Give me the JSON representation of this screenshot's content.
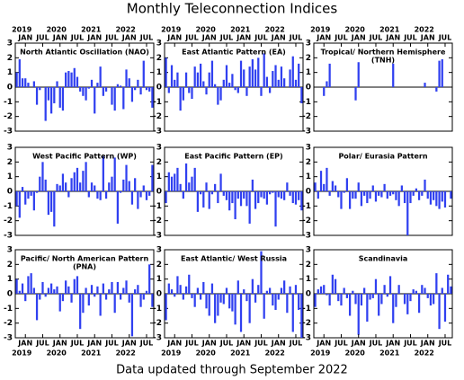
{
  "title": "Monthly Teleconnection Indices",
  "footer": "Data updated through September 2022",
  "chart_data": [
    {
      "type": "bar",
      "title": [
        "North Atlantic Oscillation (NAO)"
      ],
      "color": "#3040f0",
      "ylim": [
        -3,
        3
      ],
      "yticks": [
        -3,
        -2,
        -1,
        0,
        1,
        2,
        3
      ],
      "x_labels": "top",
      "categories": [
        null,
        null,
        null,
        "JAN",
        null,
        null,
        null,
        null,
        null,
        "JUL",
        null,
        null,
        null,
        null,
        null,
        "JAN",
        null,
        null,
        null,
        null,
        null,
        "JUL",
        null,
        null,
        null,
        null,
        null,
        "JAN",
        null,
        null,
        null,
        null,
        null,
        "JUL",
        null,
        null,
        null,
        null,
        null,
        "JAN",
        null,
        null,
        null,
        null,
        null,
        "JUL",
        null,
        null
      ],
      "years": [
        null,
        null,
        null,
        "2019",
        null,
        null,
        null,
        null,
        null,
        null,
        null,
        null,
        null,
        null,
        null,
        "2020",
        null,
        null,
        null,
        null,
        null,
        null,
        null,
        null,
        null,
        null,
        null,
        "2021",
        null,
        null,
        null,
        null,
        null,
        null,
        null,
        null,
        null,
        null,
        null,
        "2022",
        null,
        null,
        null,
        null,
        null,
        null,
        null,
        null
      ],
      "values": [
        1.0,
        1.9,
        0.6,
        0.6,
        0.3,
        0.0,
        0.4,
        -1.2,
        -0.2,
        0.0,
        -2.3,
        -0.9,
        -1.8,
        -1.1,
        0.4,
        -1.4,
        -1.6,
        1.0,
        1.1,
        1.0,
        1.3,
        0.7,
        -0.3,
        -0.6,
        -0.9,
        -0.1,
        0.5,
        -1.8,
        0.3,
        1.4,
        -0.6,
        -0.3,
        0.0,
        -1.2,
        -1.6,
        0.2,
        0.1,
        -1.5,
        1.2,
        0.6,
        -1.0,
        -0.2,
        0.5,
        -0.5,
        1.8,
        -0.2,
        -0.3,
        -1.4
      ]
    },
    {
      "type": "bar",
      "title": [
        "East Atlantic Pattern (EA)"
      ],
      "color": "#3040f0",
      "ylim": [
        -3,
        3
      ],
      "yticks": [
        -3,
        -2,
        -1,
        0,
        1,
        2,
        3
      ],
      "x_labels": "top",
      "categories": [
        null,
        null,
        null,
        "JAN",
        null,
        null,
        null,
        null,
        null,
        "JUL",
        null,
        null,
        null,
        null,
        null,
        "JAN",
        null,
        null,
        null,
        null,
        null,
        "JUL",
        null,
        null,
        null,
        null,
        null,
        "JAN",
        null,
        null,
        null,
        null,
        null,
        "JUL",
        null,
        null,
        null,
        null,
        null,
        "JAN",
        null,
        null,
        null,
        null,
        null,
        "JUL",
        null,
        null
      ],
      "years": [
        null,
        null,
        null,
        "2019",
        null,
        null,
        null,
        null,
        null,
        null,
        null,
        null,
        null,
        null,
        null,
        "2020",
        null,
        null,
        null,
        null,
        null,
        null,
        null,
        null,
        null,
        null,
        null,
        "2021",
        null,
        null,
        null,
        null,
        null,
        null,
        null,
        null,
        null,
        null,
        null,
        "2022",
        null,
        null,
        null,
        null,
        null,
        null,
        null,
        null
      ],
      "values": [
        2.0,
        -0.4,
        1.5,
        0.5,
        1.0,
        -1.6,
        -0.9,
        1.0,
        -0.4,
        -0.8,
        1.4,
        1.0,
        1.6,
        0.4,
        -0.5,
        1.0,
        1.8,
        0.2,
        -1.2,
        -0.9,
        0.5,
        1.5,
        0.3,
        0.9,
        -0.2,
        -0.4,
        1.8,
        1.2,
        -0.6,
        1.4,
        1.9,
        1.2,
        2.0,
        -0.6,
        2.3,
        0.7,
        -0.4,
        1.1,
        1.5,
        0.5,
        1.4,
        0.6,
        0.0,
        1.2,
        2.1,
        0.5,
        1.6,
        -1.1
      ]
    },
    {
      "type": "bar",
      "title": [
        "Tropical/ Northern Hemisphere",
        "(TNH)"
      ],
      "color": "#3040f0",
      "ylim": [
        -3,
        3
      ],
      "yticks": [
        -3,
        -2,
        -1,
        0,
        1,
        2,
        3
      ],
      "x_labels": "top",
      "categories": [
        null,
        null,
        null,
        "JAN",
        null,
        null,
        null,
        null,
        null,
        "JUL",
        null,
        null,
        null,
        null,
        null,
        "JAN",
        null,
        null,
        null,
        null,
        null,
        "JUL",
        null,
        null,
        null,
        null,
        null,
        "JAN",
        null,
        null,
        null,
        null,
        null,
        "JUL",
        null,
        null,
        null,
        null,
        null,
        "JAN",
        null,
        null,
        null,
        null,
        null,
        "JUL",
        null,
        null
      ],
      "years": [
        null,
        null,
        null,
        "2019",
        null,
        null,
        null,
        null,
        null,
        null,
        null,
        null,
        null,
        null,
        null,
        "2020",
        null,
        null,
        null,
        null,
        null,
        null,
        null,
        null,
        null,
        null,
        null,
        "2021",
        null,
        null,
        null,
        null,
        null,
        null,
        null,
        null,
        null,
        null,
        null,
        "2022",
        null,
        null,
        null,
        null,
        null,
        null,
        null,
        null
      ],
      "values": [
        0,
        0,
        0,
        -0.6,
        0.4,
        1.6,
        0,
        0,
        0,
        0,
        0,
        0,
        0,
        0,
        -0.9,
        1.7,
        0,
        0,
        0,
        0,
        0,
        0,
        0,
        0,
        0,
        0,
        0,
        1.6,
        0,
        0,
        0,
        0,
        0,
        0,
        0,
        0,
        0,
        0,
        0.3,
        0,
        0,
        0,
        -0.3,
        1.8,
        1.9,
        0,
        0,
        0
      ]
    },
    {
      "type": "bar",
      "title": [
        "West Pacific Pattern (WP)"
      ],
      "color": "#3040f0",
      "ylim": [
        -3,
        3
      ],
      "yticks": [
        -3,
        -2,
        -1,
        0,
        1,
        2,
        3
      ],
      "x_labels": "none",
      "values": [
        -1.0,
        -1.8,
        0.3,
        -0.9,
        -0.5,
        -0.3,
        -1.3,
        -0.1,
        1.0,
        2.0,
        0.8,
        -1.6,
        -1.4,
        -2.4,
        0.5,
        0.4,
        1.2,
        0.6,
        -0.4,
        0.9,
        1.3,
        1.6,
        0.6,
        1.4,
        2.0,
        -0.4,
        0.6,
        0.4,
        -0.5,
        -0.6,
        2.4,
        -0.5,
        0.6,
        1.0,
        2.3,
        -2.2,
        -0.1,
        0.8,
        1.8,
        0.7,
        -0.9,
        0.9,
        -1.2,
        -0.4,
        0.4,
        -0.6,
        -0.3,
        1.8
      ]
    },
    {
      "type": "bar",
      "title": [
        "East Pacific Pattern (EP)"
      ],
      "color": "#3040f0",
      "ylim": [
        -3,
        3
      ],
      "yticks": [
        -3,
        -2,
        -1,
        0,
        1,
        2,
        3
      ],
      "x_labels": "none",
      "values": [
        -0.8,
        1.3,
        1.0,
        1.2,
        1.6,
        0.5,
        -0.5,
        1.9,
        0.6,
        1.0,
        1.6,
        -1.4,
        -0.2,
        -1.1,
        0.6,
        -1.2,
        -0.2,
        0.5,
        -0.8,
        1.2,
        -0.3,
        -0.6,
        -1.3,
        -0.8,
        -1.9,
        -0.5,
        -1.0,
        -0.5,
        -1.0,
        -2.2,
        0.8,
        -1.2,
        -0.8,
        -0.4,
        -0.5,
        -0.9,
        -0.2,
        -0.1,
        -2.4,
        -0.4,
        -0.5,
        -0.6,
        0.6,
        -0.3,
        -0.8,
        -0.9,
        -0.6,
        -1.3
      ]
    },
    {
      "type": "bar",
      "title": [
        "Polar/ Eurasia Pattern"
      ],
      "color": "#3040f0",
      "ylim": [
        -3,
        3
      ],
      "yticks": [
        -3,
        -2,
        -1,
        0,
        1,
        2,
        3
      ],
      "x_labels": "none",
      "values": [
        0.6,
        -0.5,
        1.4,
        0.5,
        1.6,
        -0.3,
        0.7,
        0.4,
        -0.4,
        -1.2,
        -0.1,
        0.9,
        -1.2,
        -0.5,
        -0.5,
        0.6,
        -1.0,
        -0.3,
        -0.8,
        -0.5,
        0.4,
        -0.7,
        -0.3,
        -0.4,
        0.5,
        -0.5,
        -0.3,
        -0.2,
        -0.6,
        -1.0,
        0.4,
        -0.8,
        -3.0,
        -0.8,
        -0.3,
        0.2,
        -0.6,
        -0.3,
        0.8,
        -0.5,
        -0.9,
        -0.6,
        -1.0,
        -1.2,
        -0.7,
        -1.1,
        0.0,
        -0.5
      ]
    },
    {
      "type": "bar",
      "title": [
        "Pacific/ North American Pattern",
        "(PNA)"
      ],
      "color": "#3040f0",
      "ylim": [
        -3,
        3
      ],
      "yticks": [
        -3,
        -2,
        -1,
        0,
        1,
        2,
        3
      ],
      "x_labels": "bottom",
      "categories": [
        null,
        null,
        null,
        "JAN",
        null,
        null,
        null,
        null,
        null,
        "JUL",
        null,
        null,
        null,
        null,
        null,
        "JAN",
        null,
        null,
        null,
        null,
        null,
        "JUL",
        null,
        null,
        null,
        null,
        null,
        "JAN",
        null,
        null,
        null,
        null,
        null,
        "JUL",
        null,
        null,
        null,
        null,
        null,
        "JAN",
        null,
        null,
        null,
        null,
        null,
        "JUL",
        null,
        null
      ],
      "years": [
        null,
        null,
        null,
        "2019",
        null,
        null,
        null,
        null,
        null,
        null,
        null,
        null,
        null,
        null,
        null,
        "2020",
        null,
        null,
        null,
        null,
        null,
        null,
        null,
        null,
        null,
        null,
        null,
        "2021",
        null,
        null,
        null,
        null,
        null,
        null,
        null,
        null,
        null,
        null,
        null,
        "2022",
        null,
        null,
        null,
        null,
        null,
        null,
        null,
        null
      ],
      "values": [
        1.0,
        0.2,
        0.7,
        -0.5,
        1.2,
        1.4,
        0.4,
        -1.8,
        -0.4,
        0.8,
        -0.2,
        0.4,
        0.7,
        0.3,
        0.5,
        -1.2,
        -0.5,
        0.9,
        0.5,
        -0.6,
        1.0,
        1.2,
        -2.4,
        -1.3,
        0.4,
        -0.8,
        0.6,
        -0.2,
        0.5,
        -1.5,
        0.7,
        -0.4,
        0.3,
        0.8,
        -1.3,
        0.8,
        -0.4,
        0.4,
        0.9,
        -0.6,
        -2.9,
        0.3,
        0.6,
        -0.9,
        -0.4,
        0.2,
        2.0,
        -0.9
      ]
    },
    {
      "type": "bar",
      "title": [
        "East Atlantic/ West Russia"
      ],
      "color": "#3040f0",
      "ylim": [
        -3,
        3
      ],
      "yticks": [
        -3,
        -2,
        -1,
        0,
        1,
        2,
        3
      ],
      "x_labels": "bottom",
      "categories": [
        null,
        null,
        null,
        "JAN",
        null,
        null,
        null,
        null,
        null,
        "JUL",
        null,
        null,
        null,
        null,
        null,
        "JAN",
        null,
        null,
        null,
        null,
        null,
        "JUL",
        null,
        null,
        null,
        null,
        null,
        "JAN",
        null,
        null,
        null,
        null,
        null,
        "JUL",
        null,
        null,
        null,
        null,
        null,
        "JAN",
        null,
        null,
        null,
        null,
        null,
        "JUL",
        null,
        null
      ],
      "years": [
        null,
        null,
        null,
        "2019",
        null,
        null,
        null,
        null,
        null,
        null,
        null,
        null,
        null,
        null,
        null,
        "2020",
        null,
        null,
        null,
        null,
        null,
        null,
        null,
        null,
        null,
        null,
        null,
        "2021",
        null,
        null,
        null,
        null,
        null,
        null,
        null,
        null,
        null,
        null,
        null,
        "2022",
        null,
        null,
        null,
        null,
        null,
        null,
        null,
        null
      ],
      "values": [
        -1.8,
        0.7,
        0.3,
        -0.2,
        1.2,
        0.6,
        -0.4,
        0.5,
        1.3,
        -0.3,
        -0.9,
        0.4,
        -0.4,
        0.8,
        -1.0,
        -1.5,
        0.7,
        -2.0,
        -1.5,
        -0.6,
        -0.7,
        0.4,
        -1.0,
        -1.2,
        -2.1,
        0.9,
        -2.6,
        0.3,
        -0.5,
        -2.0,
        1.0,
        -0.6,
        0.6,
        2.9,
        -1.7,
        0.2,
        0.4,
        -0.8,
        -1.1,
        -0.4,
        0.4,
        0.9,
        -1.3,
        0.5,
        -2.6,
        0.6,
        -1.1,
        -3.0
      ]
    },
    {
      "type": "bar",
      "title": [
        "Scandinavia"
      ],
      "color": "#3040f0",
      "ylim": [
        -3,
        3
      ],
      "yticks": [
        -3,
        -2,
        -1,
        0,
        1,
        2,
        3
      ],
      "x_labels": "bottom",
      "categories": [
        null,
        null,
        null,
        "JAN",
        null,
        null,
        null,
        null,
        null,
        "JUL",
        null,
        null,
        null,
        null,
        null,
        "JAN",
        null,
        null,
        null,
        null,
        null,
        "JUL",
        null,
        null,
        null,
        null,
        null,
        "JAN",
        null,
        null,
        null,
        null,
        null,
        "JUL",
        null,
        null,
        null,
        null,
        null,
        "JAN",
        null,
        null,
        null,
        null,
        null,
        "JUL",
        null,
        null
      ],
      "years": [
        null,
        null,
        null,
        "2019",
        null,
        null,
        null,
        null,
        null,
        null,
        null,
        null,
        null,
        null,
        null,
        "2020",
        null,
        null,
        null,
        null,
        null,
        null,
        null,
        null,
        null,
        null,
        null,
        "2021",
        null,
        null,
        null,
        null,
        null,
        null,
        null,
        null,
        null,
        null,
        null,
        "2022",
        null,
        null,
        null,
        null,
        null,
        null,
        null,
        null
      ],
      "values": [
        -0.9,
        0.3,
        0.5,
        0.6,
        -0.1,
        -0.8,
        1.3,
        1.0,
        -0.5,
        -0.8,
        0.4,
        -0.3,
        -1.5,
        0.2,
        -0.7,
        -2.8,
        -0.8,
        0.4,
        -1.9,
        -0.4,
        -0.3,
        1.0,
        -1.5,
        -0.7,
        0.6,
        -0.2,
        1.2,
        -2.0,
        -0.9,
        0.6,
        0.0,
        -0.7,
        -1.4,
        -0.5,
        0.3,
        0.2,
        -1.3,
        0.6,
        0.4,
        -0.3,
        -0.8,
        -0.7,
        1.4,
        -2.4,
        0.4,
        -1.9,
        1.3,
        0.5
      ]
    }
  ]
}
